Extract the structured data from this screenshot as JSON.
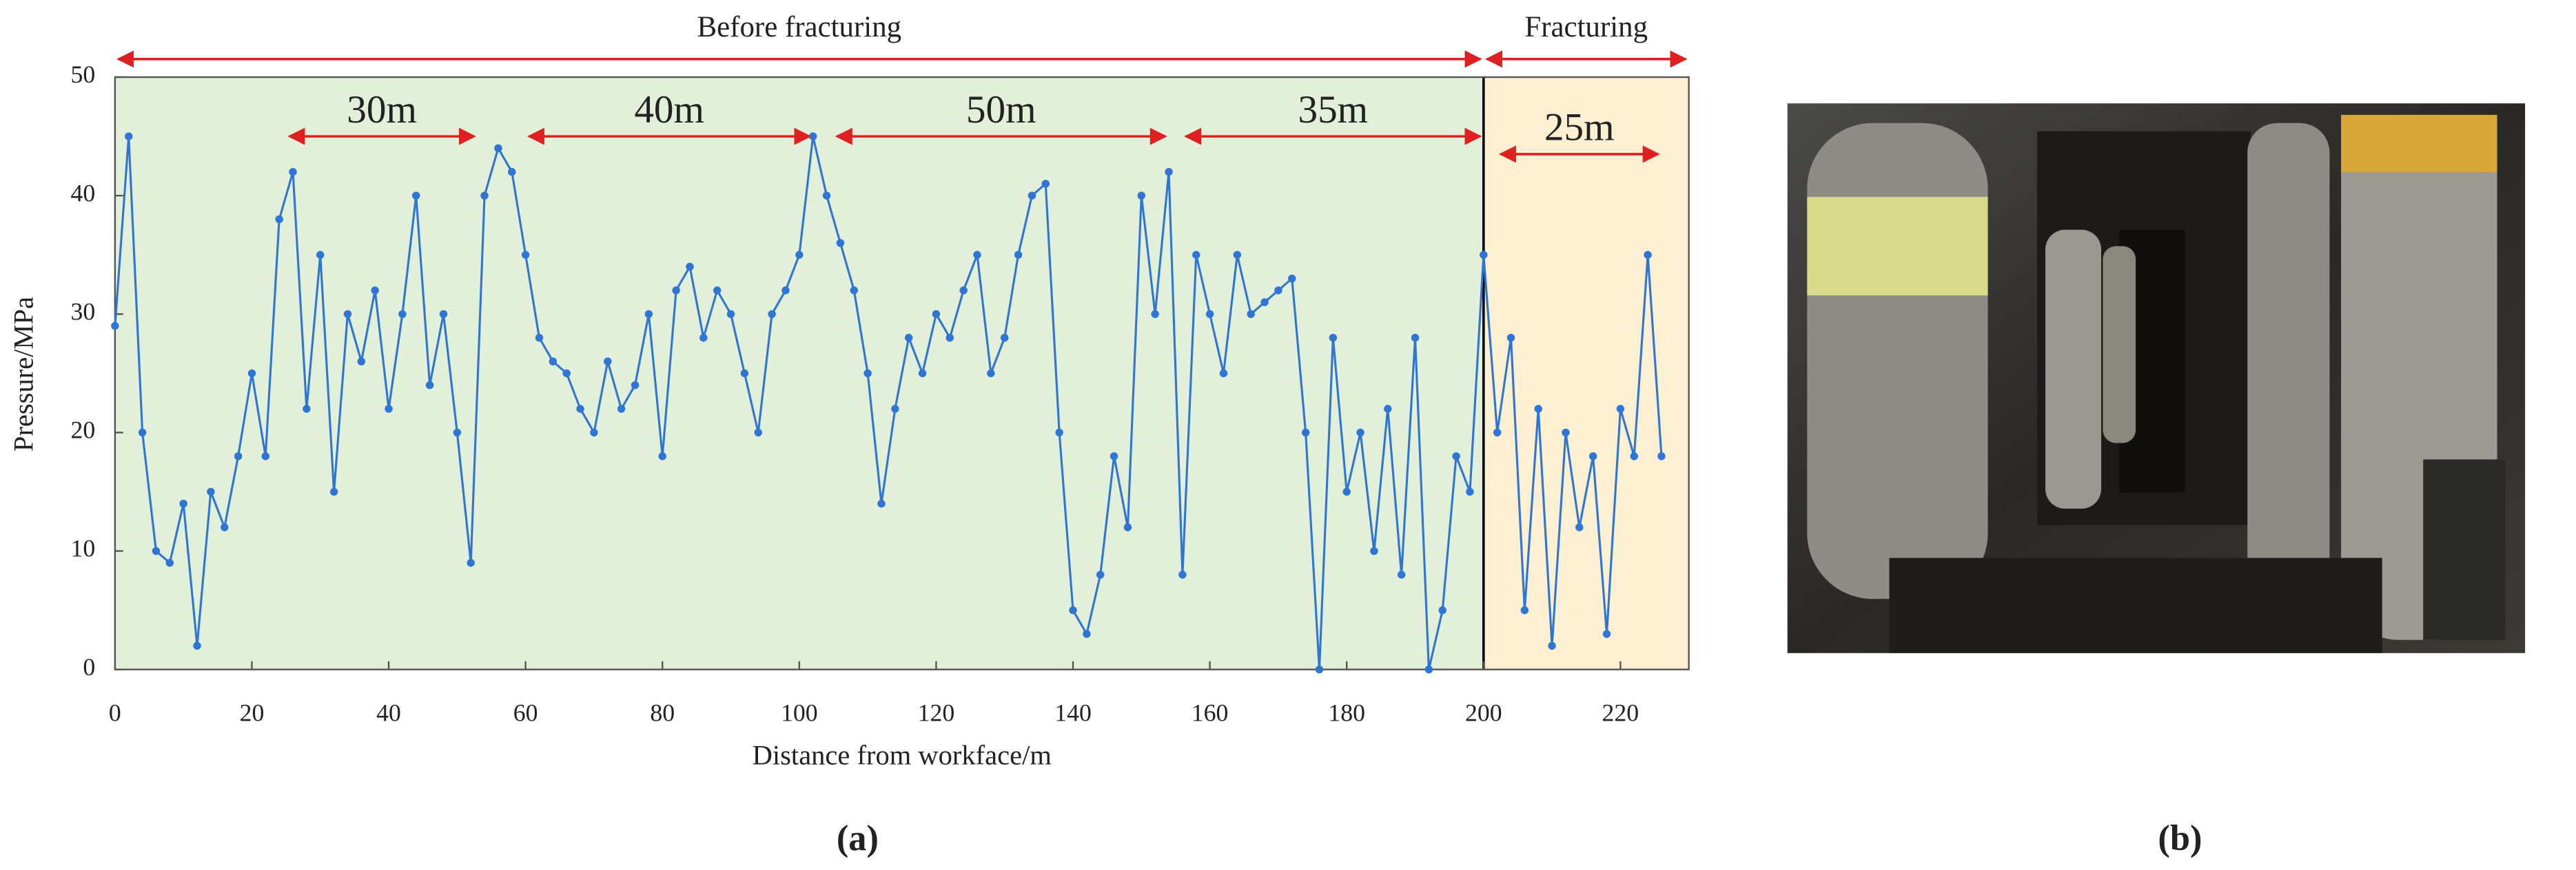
{
  "chart_data": {
    "type": "line",
    "x_label": "Distance from workface/m",
    "y_label": "Pressure/MPa",
    "xlim": [
      0,
      230
    ],
    "ylim": [
      0,
      50
    ],
    "xticks": [
      0,
      20,
      40,
      60,
      80,
      100,
      120,
      140,
      160,
      180,
      200,
      220
    ],
    "yticks": [
      0,
      10,
      20,
      30,
      40,
      50
    ],
    "regions": [
      {
        "label": "Before fracturing",
        "range": [
          0,
          200
        ],
        "color": "#e2efd9"
      },
      {
        "label": "Fracturing",
        "range": [
          200,
          230
        ],
        "color": "#fdefd2"
      }
    ],
    "spans": [
      {
        "label": "30m",
        "range": [
          25,
          53
        ],
        "y": 45
      },
      {
        "label": "40m",
        "range": [
          60,
          102
        ],
        "y": 45
      },
      {
        "label": "50m",
        "range": [
          105,
          154
        ],
        "y": 45
      },
      {
        "label": "35m",
        "range": [
          156,
          200
        ],
        "y": 45
      },
      {
        "label": "25m",
        "range": [
          202,
          226
        ],
        "y": 43.5
      }
    ],
    "series": [
      {
        "color": "#2e75d6",
        "x": [
          0,
          2,
          4,
          6,
          8,
          10,
          12,
          14,
          16,
          18,
          20,
          22,
          24,
          26,
          28,
          30,
          32,
          34,
          36,
          38,
          40,
          42,
          44,
          46,
          48,
          50,
          52,
          54,
          56,
          58,
          60,
          62,
          64,
          66,
          68,
          70,
          72,
          74,
          76,
          78,
          80,
          82,
          84,
          86,
          88,
          90,
          92,
          94,
          96,
          98,
          100,
          102,
          104,
          106,
          108,
          110,
          112,
          114,
          116,
          118,
          120,
          122,
          124,
          126,
          128,
          130,
          132,
          134,
          136,
          138,
          140,
          142,
          144,
          146,
          148,
          150,
          152,
          154,
          156,
          158,
          160,
          162,
          164,
          166,
          168,
          170,
          172,
          174,
          176,
          178,
          180,
          182,
          184,
          186,
          188,
          190,
          192,
          194,
          196,
          198,
          200,
          202,
          204,
          206,
          208,
          210,
          212,
          214,
          216,
          218,
          220,
          222,
          224,
          226
        ],
        "values": [
          29,
          45,
          20,
          10,
          9,
          14,
          2,
          15,
          12,
          18,
          25,
          18,
          38,
          42,
          22,
          35,
          15,
          30,
          26,
          32,
          22,
          30,
          40,
          24,
          30,
          20,
          9,
          40,
          44,
          42,
          35,
          28,
          26,
          25,
          22,
          20,
          26,
          22,
          24,
          30,
          18,
          32,
          34,
          28,
          32,
          30,
          25,
          20,
          30,
          32,
          35,
          45,
          40,
          36,
          32,
          25,
          14,
          22,
          28,
          25,
          30,
          28,
          32,
          35,
          25,
          28,
          35,
          40,
          41,
          20,
          5,
          3,
          8,
          18,
          12,
          40,
          30,
          42,
          8,
          35,
          30,
          25,
          35,
          30,
          31,
          32,
          33,
          20,
          0,
          28,
          15,
          20,
          10,
          22,
          8,
          28,
          0,
          5,
          18,
          15,
          35,
          20,
          28,
          5,
          22,
          2,
          20,
          12,
          18,
          3,
          22,
          18,
          35,
          18
        ]
      }
    ]
  },
  "captions": [
    "(a)",
    "(b)"
  ]
}
